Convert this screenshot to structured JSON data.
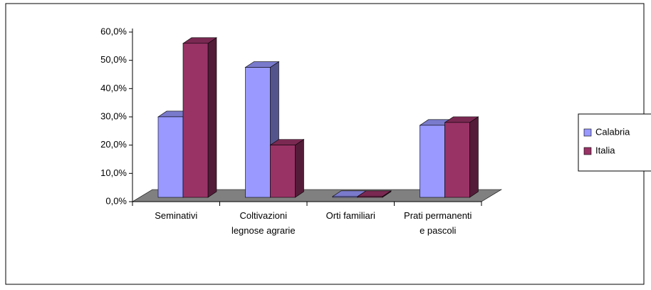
{
  "chart_data": {
    "type": "bar3d",
    "categories": [
      "Seminativi",
      "Coltivazioni legnose agrarie",
      "Orti familiari",
      "Prati permanenti e pascoli"
    ],
    "series": [
      {
        "name": "Calabria",
        "color": "#9999ff",
        "values": [
          28.5,
          46,
          0.3,
          25.5
        ]
      },
      {
        "name": "Italia",
        "color": "#993366",
        "values": [
          54.5,
          18.5,
          0.3,
          26.5
        ]
      }
    ],
    "ylim": [
      0,
      60
    ],
    "yticks": [
      {
        "value": 0,
        "label": "0,0%"
      },
      {
        "value": 10,
        "label": "10,0%"
      },
      {
        "value": 20,
        "label": "20,0%"
      },
      {
        "value": 30,
        "label": "30,0%"
      },
      {
        "value": 40,
        "label": "40,0%"
      },
      {
        "value": 50,
        "label": "50,0%"
      },
      {
        "value": 60,
        "label": "60,0%"
      }
    ],
    "grid": false,
    "legend": "right"
  }
}
